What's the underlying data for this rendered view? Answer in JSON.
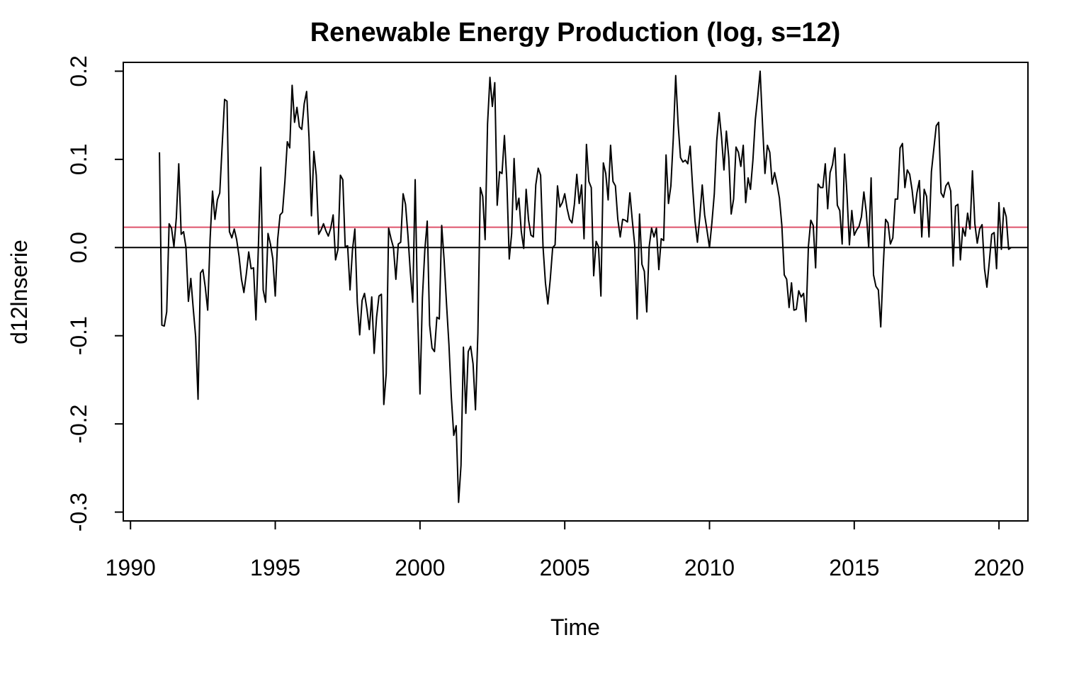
{
  "chart_data": {
    "type": "line",
    "title": "Renewable Energy Production (log, s=12)",
    "xlabel": "Time",
    "ylabel": "d12lnserie",
    "xlim": [
      1989.75,
      2021.0
    ],
    "ylim": [
      -0.31,
      0.21
    ],
    "x_ticks": [
      1990,
      1995,
      2000,
      2005,
      2010,
      2015,
      2020
    ],
    "x_tick_labels": [
      "1990",
      "1995",
      "2000",
      "2005",
      "2010",
      "2015",
      "2020"
    ],
    "y_ticks": [
      -0.3,
      -0.2,
      -0.1,
      0.0,
      0.1,
      0.2
    ],
    "y_tick_labels": [
      "-0.3",
      "-0.2",
      "-0.1",
      "0.0",
      "0.1",
      "0.2"
    ],
    "grid": false,
    "reference_lines": [
      {
        "y": 0.0,
        "color": "#000000"
      },
      {
        "y": 0.023,
        "color": "#DF536B"
      }
    ],
    "series": [
      {
        "color": "#000000",
        "x_start": 1991.0,
        "x_step": 0.08333,
        "values": [
          0.108,
          -0.088,
          -0.089,
          -0.073,
          0.027,
          0.022,
          0.001,
          0.034,
          0.095,
          0.015,
          0.018,
          0.0,
          -0.061,
          -0.035,
          -0.069,
          -0.101,
          -0.172,
          -0.029,
          -0.025,
          -0.045,
          -0.071,
          0.01,
          0.064,
          0.032,
          0.054,
          0.062,
          0.116,
          0.168,
          0.166,
          0.018,
          0.011,
          0.021,
          0.009,
          -0.01,
          -0.036,
          -0.051,
          -0.03,
          -0.005,
          -0.024,
          -0.023,
          -0.082,
          0.0,
          0.091,
          -0.048,
          -0.062,
          0.016,
          0.004,
          -0.013,
          -0.055,
          0.009,
          0.037,
          0.04,
          0.075,
          0.12,
          0.113,
          0.184,
          0.142,
          0.159,
          0.137,
          0.134,
          0.163,
          0.177,
          0.125,
          0.036,
          0.109,
          0.082,
          0.015,
          0.02,
          0.027,
          0.019,
          0.013,
          0.022,
          0.037,
          -0.014,
          -0.002,
          0.082,
          0.077,
          0.001,
          0.002,
          -0.048,
          -0.003,
          0.021,
          -0.062,
          -0.099,
          -0.06,
          -0.052,
          -0.07,
          -0.093,
          -0.056,
          -0.12,
          -0.079,
          -0.055,
          -0.053,
          -0.178,
          -0.143,
          0.022,
          0.01,
          0.0,
          -0.036,
          0.004,
          0.006,
          0.061,
          0.049,
          0.014,
          -0.028,
          -0.062,
          0.077,
          -0.071,
          -0.166,
          -0.057,
          -0.003,
          0.03,
          -0.088,
          -0.114,
          -0.118,
          -0.079,
          -0.081,
          0.025,
          -0.014,
          -0.064,
          -0.11,
          -0.17,
          -0.213,
          -0.202,
          -0.289,
          -0.247,
          -0.113,
          -0.188,
          -0.118,
          -0.112,
          -0.132,
          -0.184,
          -0.097,
          0.068,
          0.058,
          0.009,
          0.14,
          0.193,
          0.16,
          0.187,
          0.048,
          0.086,
          0.084,
          0.127,
          0.075,
          -0.013,
          0.016,
          0.101,
          0.043,
          0.056,
          0.018,
          -0.001,
          0.066,
          0.031,
          0.014,
          0.012,
          0.071,
          0.09,
          0.082,
          0.001,
          -0.04,
          -0.064,
          -0.036,
          0.0,
          0.003,
          0.07,
          0.046,
          0.051,
          0.061,
          0.044,
          0.032,
          0.028,
          0.049,
          0.083,
          0.05,
          0.071,
          0.01,
          0.117,
          0.075,
          0.068,
          -0.032,
          0.007,
          0.001,
          -0.055,
          0.096,
          0.084,
          0.054,
          0.116,
          0.075,
          0.07,
          0.032,
          0.012,
          0.032,
          0.031,
          0.029,
          0.062,
          0.031,
          0.003,
          -0.081,
          0.038,
          -0.019,
          -0.027,
          -0.073,
          0.001,
          0.022,
          0.012,
          0.022,
          -0.025,
          0.01,
          0.008,
          0.105,
          0.05,
          0.07,
          0.124,
          0.195,
          0.14,
          0.102,
          0.097,
          0.099,
          0.095,
          0.115,
          0.069,
          0.03,
          0.006,
          0.035,
          0.071,
          0.037,
          0.019,
          0.0,
          0.028,
          0.061,
          0.121,
          0.153,
          0.125,
          0.088,
          0.132,
          0.102,
          0.038,
          0.055,
          0.114,
          0.108,
          0.092,
          0.116,
          0.051,
          0.079,
          0.066,
          0.099,
          0.145,
          0.171,
          0.2,
          0.139,
          0.084,
          0.116,
          0.108,
          0.072,
          0.085,
          0.072,
          0.056,
          0.025,
          -0.031,
          -0.036,
          -0.068,
          -0.04,
          -0.071,
          -0.07,
          -0.049,
          -0.056,
          -0.052,
          -0.084,
          0.001,
          0.031,
          0.025,
          -0.023,
          0.072,
          0.068,
          0.068,
          0.095,
          0.044,
          0.085,
          0.094,
          0.113,
          0.048,
          0.042,
          0.004,
          0.106,
          0.06,
          0.003,
          0.042,
          0.014,
          0.02,
          0.024,
          0.035,
          0.063,
          0.04,
          0.0,
          0.079,
          -0.031,
          -0.044,
          -0.048,
          -0.09,
          -0.023,
          0.032,
          0.028,
          0.004,
          0.011,
          0.055,
          0.055,
          0.113,
          0.118,
          0.068,
          0.088,
          0.083,
          0.065,
          0.039,
          0.062,
          0.076,
          0.012,
          0.066,
          0.058,
          0.012,
          0.086,
          0.112,
          0.138,
          0.142,
          0.062,
          0.057,
          0.07,
          0.074,
          0.064,
          -0.021,
          0.047,
          0.049,
          -0.014,
          0.022,
          0.013,
          0.039,
          0.021,
          0.087,
          0.027,
          0.005,
          0.021,
          0.026,
          -0.024,
          -0.045,
          -0.016,
          0.015,
          0.017,
          -0.024,
          0.051,
          -0.002,
          0.045,
          0.035,
          -0.002,
          0.0
        ]
      }
    ]
  }
}
